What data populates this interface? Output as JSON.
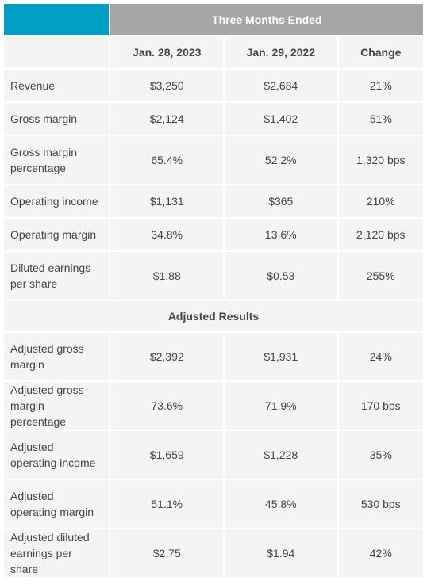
{
  "table": {
    "group_header": "Three Months Ended",
    "columns": [
      "Jan. 28, 2023",
      "Jan. 29, 2022",
      "Change"
    ],
    "rows": [
      [
        "Revenue",
        "$3,250",
        "$2,684",
        "21%"
      ],
      [
        "Gross margin",
        "$2,124",
        "$1,402",
        "51%"
      ],
      [
        "Gross margin percentage",
        "65.4%",
        "52.2%",
        "1,320 bps"
      ],
      [
        "Operating income",
        "$1,131",
        "$365",
        "210%"
      ],
      [
        "Operating margin",
        "34.8%",
        "13.6%",
        "2,120 bps"
      ],
      [
        "Diluted earnings per share",
        "$1.88",
        "$0.53",
        "255%"
      ]
    ],
    "section": "Adjusted Results",
    "adjusted_rows": [
      [
        "Adjusted gross margin",
        "$2,392",
        "$1,931",
        "24%"
      ],
      [
        "Adjusted gross margin percentage",
        "73.6%",
        "71.9%",
        "170 bps"
      ],
      [
        "Adjusted operating income",
        "$1,659",
        "$1,228",
        "35%"
      ],
      [
        "Adjusted operating margin",
        "51.1%",
        "45.8%",
        "530 bps"
      ],
      [
        "Adjusted diluted earnings per share",
        "$2.75",
        "$1.94",
        "42%"
      ]
    ]
  }
}
